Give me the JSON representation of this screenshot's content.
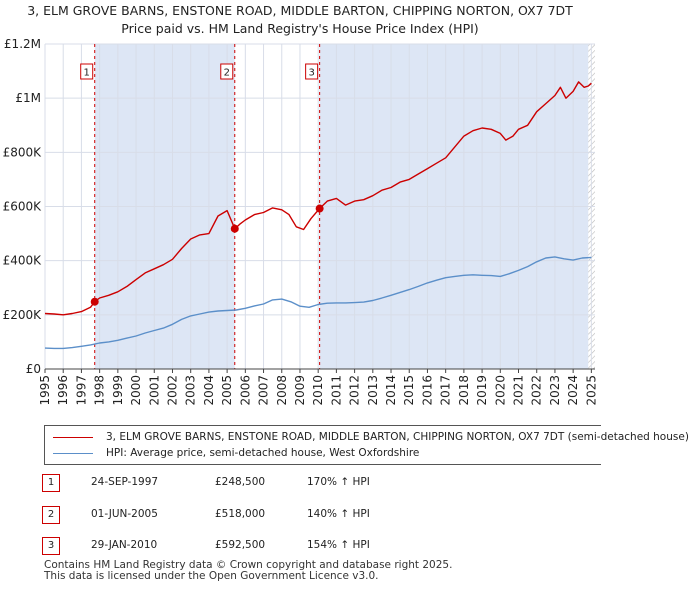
{
  "chart_data": {
    "type": "line",
    "title": "3, ELM GROVE BARNS, ENSTONE ROAD, MIDDLE BARTON, CHIPPING NORTON, OX7 7DT",
    "subtitle": "Price paid vs. HM Land Registry's House Price Index (HPI)",
    "xlim": [
      1995,
      2025.2
    ],
    "ylim": [
      0,
      1200000
    ],
    "x_ticks": [
      "1995",
      "1996",
      "1997",
      "1998",
      "1999",
      "2000",
      "2001",
      "2002",
      "2003",
      "2004",
      "2005",
      "2006",
      "2007",
      "2008",
      "2009",
      "2010",
      "2011",
      "2012",
      "2013",
      "2014",
      "2015",
      "2016",
      "2017",
      "2018",
      "2019",
      "2020",
      "2021",
      "2022",
      "2023",
      "2024",
      "2025"
    ],
    "y_ticks": [
      {
        "value": 0,
        "label": "£0"
      },
      {
        "value": 200000,
        "label": "£200K"
      },
      {
        "value": 400000,
        "label": "£400K"
      },
      {
        "value": 600000,
        "label": "£600K"
      },
      {
        "value": 800000,
        "label": "£800K"
      },
      {
        "value": 1000000,
        "label": "£1M"
      },
      {
        "value": 1200000,
        "label": "£1.2M"
      }
    ],
    "colors": {
      "property": "#cc0000",
      "hpi": "#5b8fc9",
      "shade": "#dde6f5",
      "grid": "#d8dde8",
      "sale_line": "#cc0000"
    },
    "shaded_ranges": [
      [
        1997.73,
        2005.42
      ],
      [
        2010.08,
        2025.2
      ]
    ],
    "hatched_from": 2024.83,
    "series": [
      {
        "name": "3, ELM GROVE BARNS, ENSTONE ROAD, MIDDLE BARTON, CHIPPING NORTON, OX7 7DT (semi-detached house)",
        "color": "#cc0000",
        "x": [
          1995.0,
          1995.5,
          1996.0,
          1996.5,
          1997.0,
          1997.5,
          1997.73,
          1998.0,
          1998.5,
          1999.0,
          1999.5,
          2000.0,
          2000.5,
          2001.0,
          2001.5,
          2002.0,
          2002.5,
          2003.0,
          2003.5,
          2004.0,
          2004.5,
          2005.0,
          2005.42,
          2005.7,
          2006.0,
          2006.5,
          2007.0,
          2007.5,
          2008.0,
          2008.4,
          2008.8,
          2009.2,
          2009.6,
          2010.08,
          2010.5,
          2011.0,
          2011.5,
          2012.0,
          2012.5,
          2013.0,
          2013.5,
          2014.0,
          2014.5,
          2015.0,
          2015.5,
          2016.0,
          2016.5,
          2017.0,
          2017.5,
          2018.0,
          2018.5,
          2019.0,
          2019.5,
          2020.0,
          2020.3,
          2020.7,
          2021.0,
          2021.5,
          2022.0,
          2022.5,
          2023.0,
          2023.3,
          2023.6,
          2024.0,
          2024.3,
          2024.6,
          2024.83,
          2025.0
        ],
        "values": [
          205000,
          203000,
          200000,
          205000,
          212000,
          228000,
          248500,
          262000,
          272000,
          285000,
          305000,
          330000,
          355000,
          370000,
          385000,
          405000,
          445000,
          480000,
          495000,
          500000,
          565000,
          585000,
          518000,
          535000,
          550000,
          570000,
          578000,
          595000,
          588000,
          570000,
          525000,
          515000,
          555000,
          592500,
          620000,
          630000,
          605000,
          620000,
          625000,
          640000,
          660000,
          670000,
          690000,
          700000,
          720000,
          740000,
          760000,
          780000,
          820000,
          860000,
          880000,
          890000,
          885000,
          870000,
          845000,
          860000,
          885000,
          900000,
          950000,
          980000,
          1010000,
          1040000,
          1000000,
          1025000,
          1060000,
          1040000,
          1045000,
          1055000
        ]
      },
      {
        "name": "HPI: Average price, semi-detached house, West Oxfordshire",
        "color": "#5b8fc9",
        "x": [
          1995.0,
          1995.5,
          1996.0,
          1996.5,
          1997.0,
          1997.5,
          1998.0,
          1998.5,
          1999.0,
          1999.5,
          2000.0,
          2000.5,
          2001.0,
          2001.5,
          2002.0,
          2002.5,
          2003.0,
          2003.5,
          2004.0,
          2004.5,
          2005.0,
          2005.5,
          2006.0,
          2006.5,
          2007.0,
          2007.5,
          2008.0,
          2008.5,
          2009.0,
          2009.5,
          2010.0,
          2010.5,
          2011.0,
          2011.5,
          2012.0,
          2012.5,
          2013.0,
          2013.5,
          2014.0,
          2014.5,
          2015.0,
          2015.5,
          2016.0,
          2016.5,
          2017.0,
          2017.5,
          2018.0,
          2018.5,
          2019.0,
          2019.5,
          2020.0,
          2020.5,
          2021.0,
          2021.5,
          2022.0,
          2022.5,
          2023.0,
          2023.5,
          2024.0,
          2024.5,
          2025.0
        ],
        "values": [
          77000,
          76000,
          76000,
          79000,
          84000,
          89000,
          96000,
          100000,
          106000,
          114000,
          122000,
          133000,
          142000,
          151000,
          165000,
          183000,
          196000,
          203000,
          210000,
          214000,
          216000,
          218000,
          224000,
          233000,
          240000,
          255000,
          258000,
          248000,
          232000,
          228000,
          238000,
          243000,
          244000,
          244000,
          245000,
          247000,
          253000,
          262000,
          272000,
          283000,
          293000,
          305000,
          318000,
          328000,
          337000,
          342000,
          346000,
          348000,
          346000,
          345000,
          342000,
          352000,
          364000,
          378000,
          396000,
          410000,
          414000,
          407000,
          402000,
          410000,
          412000
        ]
      }
    ],
    "sales": [
      {
        "num": "1",
        "x": 1997.73,
        "price_value": 248500,
        "date": "24-SEP-1997",
        "price": "£248,500",
        "hpi": "170% ↑ HPI"
      },
      {
        "num": "2",
        "x": 2005.42,
        "price_value": 518000,
        "date": "01-JUN-2005",
        "price": "£518,000",
        "hpi": "140% ↑ HPI"
      },
      {
        "num": "3",
        "x": 2010.08,
        "price_value": 592500,
        "date": "29-JAN-2010",
        "price": "£592,500",
        "hpi": "154% ↑ HPI"
      }
    ],
    "legend": {
      "property_label": "3, ELM GROVE BARNS, ENSTONE ROAD, MIDDLE BARTON, CHIPPING NORTON, OX7 7DT (semi-detached house)",
      "hpi_label": "HPI: Average price, semi-detached house, West Oxfordshire"
    }
  },
  "footer": {
    "line1": "Contains HM Land Registry data © Crown copyright and database right 2025.",
    "line2": "This data is licensed under the Open Government Licence v3.0."
  }
}
